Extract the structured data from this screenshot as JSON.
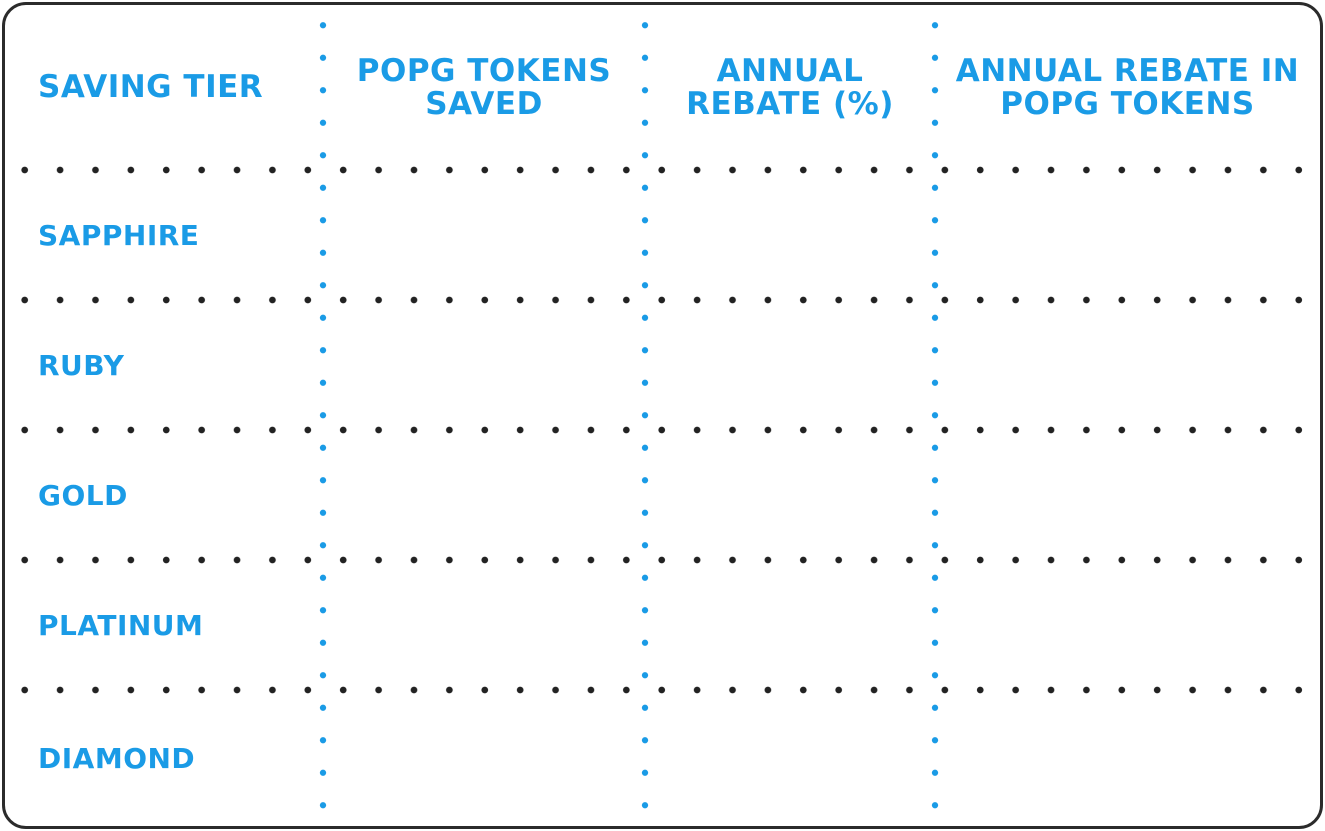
{
  "table": {
    "headers": [
      "SAVING TIER",
      "POPG TOKENS SAVED",
      "ANNUAL REBATE (%)",
      "ANNUAL REBATE IN POPG TOKENS"
    ],
    "rows": [
      {
        "tier": "SAPPHIRE",
        "tokens_saved": "",
        "rebate_percent": "",
        "rebate_tokens": ""
      },
      {
        "tier": "RUBY",
        "tokens_saved": "",
        "rebate_percent": "",
        "rebate_tokens": ""
      },
      {
        "tier": "GOLD",
        "tokens_saved": "",
        "rebate_percent": "",
        "rebate_tokens": ""
      },
      {
        "tier": "PLATINUM",
        "tokens_saved": "",
        "rebate_percent": "",
        "rebate_tokens": ""
      },
      {
        "tier": "DIAMOND",
        "tokens_saved": "",
        "rebate_percent": "",
        "rebate_tokens": ""
      }
    ]
  },
  "colors": {
    "text_accent": "#1a9be6",
    "row_separator": "#222222",
    "column_separator": "#1a9be6",
    "border": "#2b2b2b",
    "background": "#ffffff"
  }
}
